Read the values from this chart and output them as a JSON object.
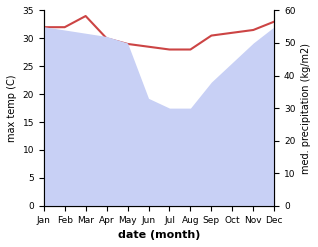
{
  "months": [
    "Jan",
    "Feb",
    "Mar",
    "Apr",
    "May",
    "Jun",
    "Jul",
    "Aug",
    "Sep",
    "Oct",
    "Nov",
    "Dec"
  ],
  "max_temp": [
    32.0,
    32.0,
    34.0,
    30.0,
    29.0,
    28.5,
    28.0,
    28.0,
    30.5,
    31.0,
    31.5,
    33.0
  ],
  "precipitation": [
    55,
    54,
    53,
    52,
    50,
    33,
    30,
    30,
    38,
    44,
    50,
    55
  ],
  "temp_color": "#cc4444",
  "precip_fill_color": "#c8d0f5",
  "ylabel_left": "max temp (C)",
  "ylabel_right": "med. precipitation (kg/m2)",
  "xlabel": "date (month)",
  "ylim_left": [
    0,
    35
  ],
  "ylim_right": [
    0,
    60
  ],
  "yticks_left": [
    0,
    5,
    10,
    15,
    20,
    25,
    30,
    35
  ],
  "yticks_right": [
    0,
    10,
    20,
    30,
    40,
    50,
    60
  ],
  "bg_color": "#ffffff"
}
